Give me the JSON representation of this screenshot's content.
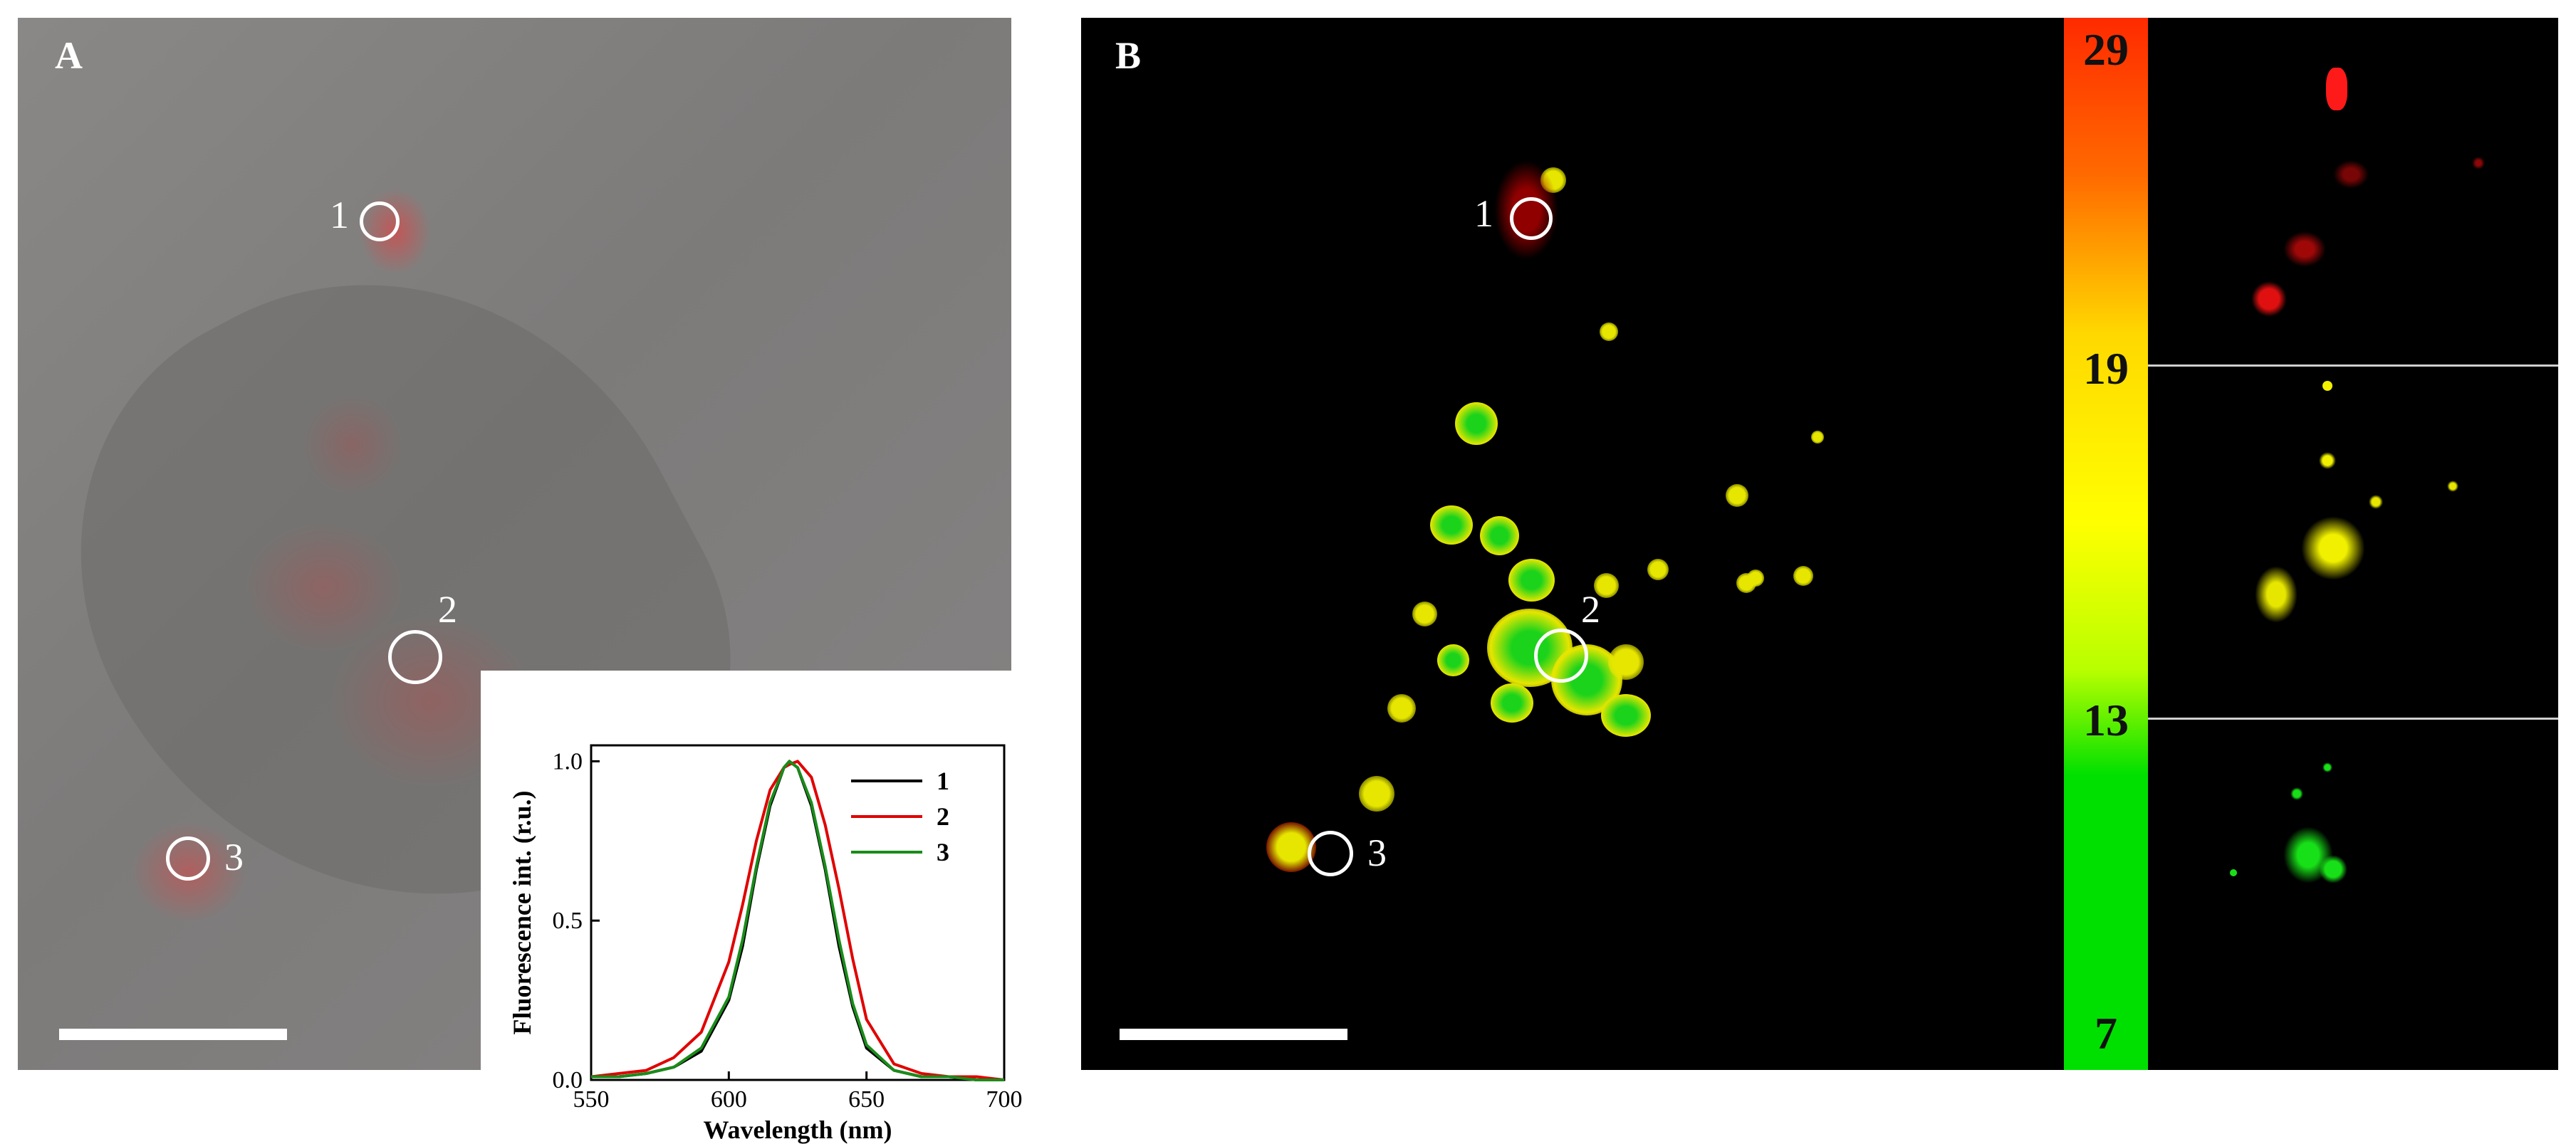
{
  "panels": {
    "a": {
      "letter": "A",
      "roi_labels": [
        "1",
        "2",
        "3"
      ]
    },
    "b": {
      "letter": "B",
      "roi_labels": [
        "1",
        "2",
        "3"
      ]
    }
  },
  "colorbar": {
    "labels": [
      "29",
      "19",
      "13",
      "7"
    ],
    "colors": {
      "top": "#ff2a00",
      "middle": "#ffff00",
      "bottom": "#00e000"
    }
  },
  "chart_data": {
    "type": "line",
    "xlabel": "Wavelength (nm)",
    "ylabel": "Fluorescence int. (r.u.)",
    "xlim": [
      550,
      700
    ],
    "ylim": [
      0.0,
      1.05
    ],
    "x_ticks": [
      "550",
      "600",
      "650",
      "700"
    ],
    "y_ticks": [
      "0.0",
      "0.5",
      "1.0"
    ],
    "legend_position": "top-right",
    "x": [
      550,
      560,
      570,
      580,
      590,
      600,
      605,
      610,
      615,
      620,
      622,
      625,
      630,
      635,
      640,
      645,
      650,
      660,
      670,
      680,
      690,
      700
    ],
    "series": [
      {
        "name": "1",
        "color": "#000000",
        "values": [
          0.01,
          0.01,
          0.02,
          0.04,
          0.09,
          0.25,
          0.42,
          0.66,
          0.86,
          0.98,
          1.0,
          0.98,
          0.86,
          0.66,
          0.42,
          0.23,
          0.1,
          0.03,
          0.01,
          0.01,
          0.0,
          0.0
        ]
      },
      {
        "name": "2",
        "color": "#e00000",
        "values": [
          0.01,
          0.02,
          0.03,
          0.07,
          0.15,
          0.37,
          0.55,
          0.75,
          0.91,
          0.98,
          0.99,
          1.0,
          0.95,
          0.8,
          0.6,
          0.38,
          0.19,
          0.05,
          0.02,
          0.01,
          0.01,
          0.0
        ]
      },
      {
        "name": "3",
        "color": "#1a8c1a",
        "values": [
          0.01,
          0.01,
          0.02,
          0.04,
          0.1,
          0.26,
          0.44,
          0.67,
          0.87,
          0.98,
          1.0,
          0.98,
          0.87,
          0.67,
          0.44,
          0.24,
          0.11,
          0.03,
          0.01,
          0.01,
          0.0,
          0.0
        ]
      }
    ]
  }
}
